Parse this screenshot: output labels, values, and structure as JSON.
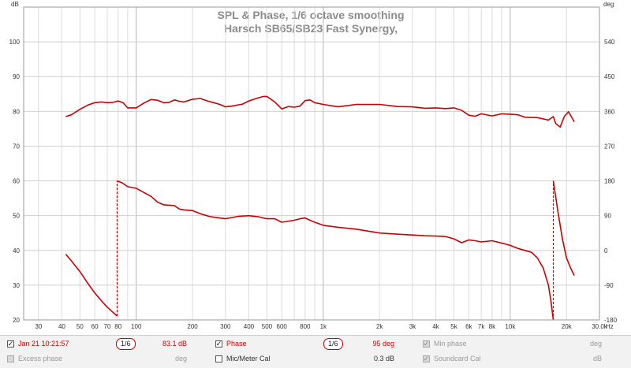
{
  "chart_data": {
    "type": "line",
    "title": "SPL & Phase, 1/6 octave smoothing",
    "subtitle": "Harsch SB65/SB23 Fast Synergy,",
    "x_unit": "Hz",
    "x_scale": "log",
    "xlim": [
      25,
      30000
    ],
    "x_ticks": [
      30,
      40,
      50,
      60,
      70,
      80,
      100,
      200,
      300,
      400,
      500,
      600,
      800,
      1000,
      2000,
      3000,
      4000,
      5000,
      6000,
      7000,
      8000,
      10000,
      20000,
      30000
    ],
    "x_tick_labels": [
      "30",
      "40",
      "50",
      "60",
      "70",
      "80",
      "100",
      "200",
      "300",
      "400",
      "500",
      "600",
      "800",
      "1k",
      "2k",
      "3k",
      "4k",
      "5k",
      "6k",
      "7k",
      "8k",
      "10k",
      "20k",
      "30.0k"
    ],
    "y_left_unit": "dB",
    "ylim_left": [
      20,
      110
    ],
    "y_left_ticks": [
      20,
      30,
      40,
      50,
      60,
      70,
      80,
      90,
      100
    ],
    "y_right_unit": "deg",
    "ylim_right": [
      -180,
      630
    ],
    "y_right_ticks": [
      -180,
      -90,
      0,
      90,
      180,
      270,
      360,
      450,
      540
    ],
    "grid": true,
    "series": [
      {
        "name": "Jan 21 10:21:57",
        "axis": "left",
        "color": "#cc0000",
        "points": [
          [
            42,
            78.5
          ],
          [
            45,
            79
          ],
          [
            50,
            80.6
          ],
          [
            55,
            81.8
          ],
          [
            60,
            82.5
          ],
          [
            65,
            82.7
          ],
          [
            70,
            82.5
          ],
          [
            75,
            82.6
          ],
          [
            80,
            83
          ],
          [
            85,
            82.5
          ],
          [
            90,
            81
          ],
          [
            100,
            81
          ],
          [
            110,
            82.4
          ],
          [
            120,
            83.4
          ],
          [
            130,
            83.2
          ],
          [
            140,
            82.5
          ],
          [
            150,
            82.6
          ],
          [
            160,
            83.3
          ],
          [
            170,
            82.9
          ],
          [
            180,
            82.7
          ],
          [
            200,
            83.5
          ],
          [
            220,
            83.7
          ],
          [
            240,
            83
          ],
          [
            260,
            82.5
          ],
          [
            280,
            82
          ],
          [
            300,
            81.3
          ],
          [
            330,
            81.6
          ],
          [
            370,
            82.1
          ],
          [
            400,
            83
          ],
          [
            450,
            83.9
          ],
          [
            480,
            84.3
          ],
          [
            500,
            84.3
          ],
          [
            550,
            82.7
          ],
          [
            600,
            80.7
          ],
          [
            650,
            81.4
          ],
          [
            700,
            81.2
          ],
          [
            750,
            81.5
          ],
          [
            800,
            83.1
          ],
          [
            850,
            83.3
          ],
          [
            900,
            82.5
          ],
          [
            1000,
            82
          ],
          [
            1200,
            81.3
          ],
          [
            1500,
            82
          ],
          [
            2000,
            82
          ],
          [
            2500,
            81.4
          ],
          [
            3000,
            81.3
          ],
          [
            3500,
            80.9
          ],
          [
            4000,
            81
          ],
          [
            4500,
            80.8
          ],
          [
            5000,
            81
          ],
          [
            5500,
            80.3
          ],
          [
            6000,
            78.9
          ],
          [
            6500,
            78.6
          ],
          [
            7000,
            79.3
          ],
          [
            8000,
            78.7
          ],
          [
            9000,
            79.3
          ],
          [
            10000,
            79.2
          ],
          [
            11000,
            79
          ],
          [
            12000,
            78.3
          ],
          [
            14000,
            78.2
          ],
          [
            16000,
            77.5
          ],
          [
            17000,
            78.5
          ],
          [
            17500,
            76.5
          ],
          [
            18500,
            75.5
          ],
          [
            19500,
            78.6
          ],
          [
            20500,
            79.9
          ],
          [
            22000,
            77
          ]
        ]
      },
      {
        "name": "Phase",
        "axis": "right",
        "color": "#cc0000",
        "points": [
          [
            42,
            -10
          ],
          [
            45,
            -27
          ],
          [
            50,
            -55
          ],
          [
            55,
            -85
          ],
          [
            60,
            -110
          ],
          [
            65,
            -130
          ],
          [
            70,
            -147
          ],
          [
            75,
            -160
          ],
          [
            79,
            -170
          ],
          [
            79,
            180
          ],
          [
            84,
            175
          ],
          [
            90,
            165
          ],
          [
            100,
            161
          ],
          [
            110,
            150
          ],
          [
            120,
            140
          ],
          [
            130,
            125
          ],
          [
            140,
            118
          ],
          [
            150,
            117
          ],
          [
            160,
            116
          ],
          [
            170,
            107
          ],
          [
            180,
            105
          ],
          [
            200,
            103
          ],
          [
            220,
            95
          ],
          [
            250,
            87
          ],
          [
            300,
            82
          ],
          [
            350,
            88
          ],
          [
            400,
            90
          ],
          [
            450,
            87
          ],
          [
            500,
            82
          ],
          [
            550,
            82
          ],
          [
            600,
            73
          ],
          [
            700,
            78
          ],
          [
            750,
            82
          ],
          [
            800,
            84
          ],
          [
            850,
            78
          ],
          [
            900,
            73
          ],
          [
            1000,
            65
          ],
          [
            1200,
            60
          ],
          [
            1500,
            55
          ],
          [
            2000,
            45
          ],
          [
            2500,
            42
          ],
          [
            3000,
            40
          ],
          [
            3500,
            38
          ],
          [
            4000,
            37
          ],
          [
            4500,
            36
          ],
          [
            5000,
            30
          ],
          [
            5500,
            20
          ],
          [
            6000,
            27
          ],
          [
            6500,
            25
          ],
          [
            7000,
            22
          ],
          [
            8000,
            25
          ],
          [
            9000,
            19
          ],
          [
            10000,
            13
          ],
          [
            11000,
            5
          ],
          [
            12000,
            0
          ],
          [
            13000,
            -5
          ],
          [
            14000,
            -20
          ],
          [
            15000,
            -45
          ],
          [
            16000,
            -90
          ],
          [
            16500,
            -130
          ],
          [
            17000,
            -180
          ],
          [
            17000,
            180
          ],
          [
            18000,
            100
          ],
          [
            19000,
            30
          ],
          [
            20000,
            -20
          ],
          [
            21000,
            -45
          ],
          [
            22000,
            -65
          ]
        ]
      }
    ]
  },
  "legend": {
    "row1": {
      "spl_label": "Jan 21 10:21:57",
      "spl_check": "✓",
      "spl_smoothing": "1/6",
      "spl_value": "83.1 dB",
      "phase_label": "Phase",
      "phase_check": "✓",
      "phase_smoothing": "1/6",
      "phase_value": "95 deg",
      "min_phase_label": "Min phase",
      "min_phase_check": "✓",
      "min_phase_unit": "deg"
    },
    "row2": {
      "excess_label": "Excess phase",
      "excess_unit": "deg",
      "mic_label": "Mic/Meter Cal",
      "mic_value": "0.3 dB",
      "soundcard_label": "Soundcard Cal",
      "soundcard_check": "✓",
      "soundcard_unit": "dB"
    }
  }
}
